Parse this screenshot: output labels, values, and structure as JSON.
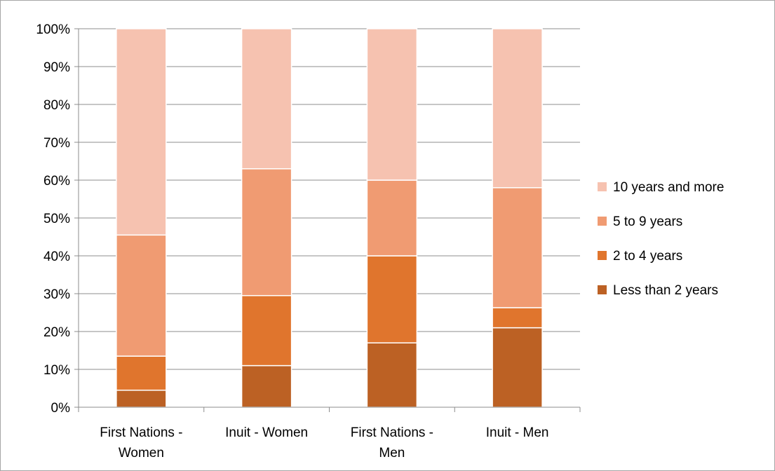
{
  "chart_data": {
    "type": "bar",
    "stacked": true,
    "percent_stacked": true,
    "categories": [
      [
        "First Nations -",
        "Women"
      ],
      [
        "Inuit - Women"
      ],
      [
        "First Nations -",
        "Men"
      ],
      [
        "Inuit - Men"
      ]
    ],
    "series": [
      {
        "name": "Less than 2 years",
        "color": "#bc6124",
        "values": [
          4.5,
          11,
          17,
          21
        ]
      },
      {
        "name": "2 to 4 years",
        "color": "#e0752d",
        "values": [
          9,
          18.5,
          23,
          5.3
        ]
      },
      {
        "name": "5 to 9 years",
        "color": "#f09b72",
        "values": [
          32,
          33.5,
          20,
          31.7
        ]
      },
      {
        "name": "10 years and more",
        "color": "#f6c2b0",
        "values": [
          54.5,
          37,
          40,
          42
        ]
      }
    ],
    "ylim": [
      0,
      100
    ],
    "yticks": [
      "0%",
      "10%",
      "20%",
      "30%",
      "40%",
      "50%",
      "60%",
      "70%",
      "80%",
      "90%",
      "100%"
    ],
    "grid": true,
    "legend_position": "right",
    "title": "",
    "xlabel": "",
    "ylabel": ""
  }
}
